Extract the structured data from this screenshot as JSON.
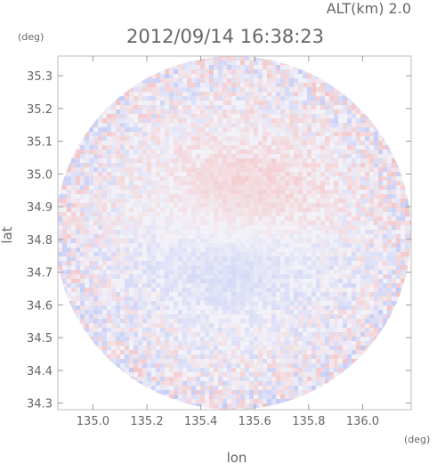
{
  "chart_data": {
    "type": "heatmap",
    "title": "2012/09/14 16:38:23",
    "altitude_label": "ALT(km) 2.0",
    "xlabel": "lon",
    "ylabel": "lat",
    "xunit": "(deg)",
    "yunit": "(deg)",
    "xlim": [
      134.87,
      136.18
    ],
    "ylim": [
      34.28,
      35.36
    ],
    "xticks": [
      135.0,
      135.2,
      135.4,
      135.6,
      135.8,
      136.0
    ],
    "xtick_labels": [
      "135.0",
      "135.2",
      "135.4",
      "135.6",
      "135.8",
      "136.0"
    ],
    "yticks": [
      34.3,
      34.4,
      34.5,
      34.6,
      34.7,
      34.8,
      34.9,
      35.0,
      35.1,
      35.2,
      35.3
    ],
    "ytick_labels": [
      "34.3",
      "34.4",
      "34.5",
      "34.6",
      "34.7",
      "34.8",
      "34.9",
      "35.0",
      "35.1",
      "35.2",
      "35.3"
    ],
    "grid": false,
    "radar_center": {
      "lon": 135.52,
      "lat": 34.82
    },
    "radar_range_deg": {
      "lon": 0.66,
      "lat": 0.54
    },
    "colors": {
      "positive": "#f5b8b8",
      "negative": "#b8c2f5",
      "neutral": "#f2f1f8"
    }
  }
}
